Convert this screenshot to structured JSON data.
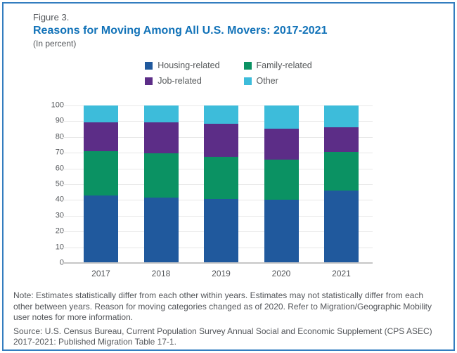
{
  "header": {
    "figure_label": "Figure 3.",
    "title": "Reasons for Moving Among All U.S. Movers: 2017-2021",
    "subtitle": "(In percent)"
  },
  "chart_data": {
    "type": "bar",
    "subtype": "stacked-percent",
    "categories": [
      "2017",
      "2018",
      "2019",
      "2020",
      "2021"
    ],
    "series": [
      {
        "name": "Housing-related",
        "color": "#20599d",
        "values": [
          43,
          41.5,
          40.5,
          40,
          46
        ]
      },
      {
        "name": "Family-related",
        "color": "#0b9263",
        "values": [
          28,
          28,
          27,
          25.5,
          24.5
        ]
      },
      {
        "name": "Job-related",
        "color": "#5c2d87",
        "values": [
          18.5,
          20,
          21,
          20,
          15.5
        ]
      },
      {
        "name": "Other",
        "color": "#3dbcda",
        "values": [
          10.5,
          10.5,
          11.5,
          14.5,
          14
        ]
      }
    ],
    "title": "Reasons for Moving Among All U.S. Movers: 2017-2021",
    "xlabel": "",
    "ylabel": "",
    "ylim": [
      0,
      100
    ],
    "yticks": [
      0,
      10,
      20,
      30,
      40,
      50,
      60,
      70,
      80,
      90,
      100
    ],
    "grid": true,
    "legend_position": "top-center"
  },
  "notes": {
    "note": "Note: Estimates statistically differ from each other within years. Estimates may not statistically differ from each other between years. Reason for moving categories changed as of 2020. Refer to Migration/Geographic Mobility user notes for more information.",
    "source": "Source: U.S. Census Bureau, Current Population Survey Annual Social and Economic Supplement (CPS ASEC) 2017-2021: Published Migration Table 17-1."
  },
  "colors": {
    "frame_border": "#337dbf",
    "title_blue": "#1172b8",
    "text_gray": "#53565a",
    "gridline": "#e8e8e8",
    "axis_line": "#c6c6c6"
  }
}
